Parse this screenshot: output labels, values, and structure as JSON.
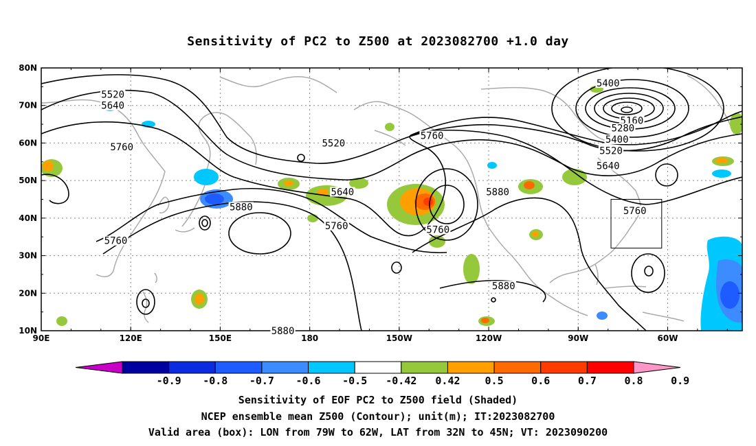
{
  "title": "Sensitivity of PC2 to Z500 at 2023082700 +1.0 day",
  "map": {
    "lat_labels": [
      "80N",
      "70N",
      "60N",
      "50N",
      "40N",
      "30N",
      "20N",
      "10N"
    ],
    "lon_labels": [
      "90E",
      "120E",
      "150E",
      "180",
      "150W",
      "120W",
      "90W",
      "60W"
    ],
    "contour_labels": [
      {
        "text": "5520",
        "lon": 114,
        "lat": 73
      },
      {
        "text": "5640",
        "lon": 114,
        "lat": 70
      },
      {
        "text": "5760",
        "lon": 117,
        "lat": 59
      },
      {
        "text": "5760",
        "lon": 115,
        "lat": 34
      },
      {
        "text": "5880",
        "lon": 157,
        "lat": 43
      },
      {
        "text": "5520",
        "lon": -172,
        "lat": 60
      },
      {
        "text": "5640",
        "lon": -169,
        "lat": 47
      },
      {
        "text": "5760",
        "lon": -171,
        "lat": 38
      },
      {
        "text": "5760",
        "lon": -139,
        "lat": 62
      },
      {
        "text": "5760",
        "lon": -137,
        "lat": 37
      },
      {
        "text": "5880",
        "lon": -117,
        "lat": 47
      },
      {
        "text": "5880",
        "lon": -115,
        "lat": 22
      },
      {
        "text": "5880",
        "lon": 171,
        "lat": 10
      },
      {
        "text": "5400",
        "lon": -80,
        "lat": 76
      },
      {
        "text": "5160",
        "lon": -72,
        "lat": 66
      },
      {
        "text": "5280",
        "lon": -75,
        "lat": 64
      },
      {
        "text": "5400",
        "lon": -77,
        "lat": 61
      },
      {
        "text": "5520",
        "lon": -79,
        "lat": 58
      },
      {
        "text": "5640",
        "lon": -80,
        "lat": 54
      },
      {
        "text": "5760",
        "lon": -71,
        "lat": 42
      }
    ],
    "valid_box": {
      "lon_w": -79,
      "lon_e": -62,
      "lat_s": 32,
      "lat_n": 45
    }
  },
  "colorbar": {
    "labels": [
      "-0.9",
      "-0.8",
      "-0.7",
      "-0.6",
      "-0.5",
      "-0.42",
      "0.42",
      "0.5",
      "0.6",
      "0.7",
      "0.8",
      "0.9"
    ],
    "colors": [
      "#c800c8",
      "#0000a0",
      "#0a2be0",
      "#1e5cff",
      "#3c8cff",
      "#00c8ff",
      "#ffffff",
      "#96c83c",
      "#ffa000",
      "#ff6a00",
      "#ff3c00",
      "#ff0000",
      "#ff96c8"
    ]
  },
  "captions": {
    "line1": "Sensitivity of EOF PC2 to Z500 field (Shaded)",
    "line2": "NCEP ensemble mean Z500 (Contour); unit(m); IT:2023082700",
    "line3": "Valid area (box): LON from 79W to 62W, LAT from 32N to 45N; VT: 2023090200"
  }
}
